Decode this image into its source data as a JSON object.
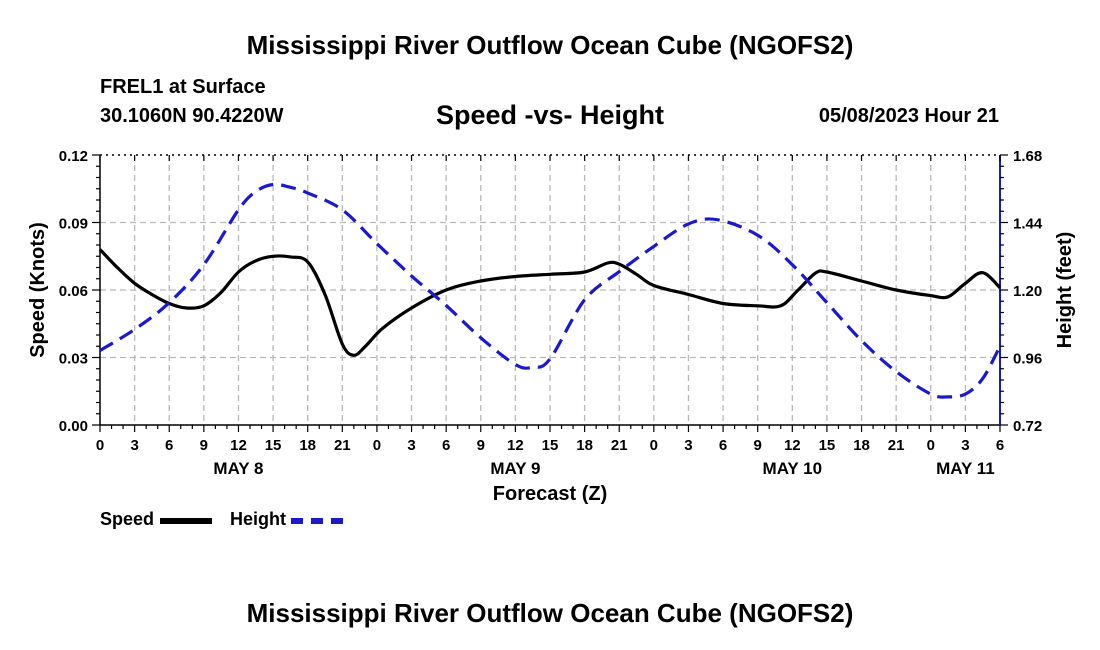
{
  "header": {
    "title": "Mississippi River Outflow Ocean Cube (NGOFS2)",
    "station": "FREL1 at Surface",
    "coords": "30.1060N  90.4220W",
    "subtitle": "Speed -vs- Height",
    "datetime": "05/08/2023 Hour 21"
  },
  "footer": {
    "title": "Mississippi River Outflow Ocean Cube (NGOFS2)"
  },
  "legend": {
    "speed_label": "Speed",
    "height_label": "Height",
    "speed_color": "#000000",
    "height_color": "#1a1acc"
  },
  "chart_data": {
    "type": "line",
    "title": "Speed -vs- Height",
    "xlabel": "Forecast (Z)",
    "ylabel": "Speed (Knots)",
    "y2label": "Height (feet)",
    "xlim": [
      0,
      78
    ],
    "ylim": [
      0,
      0.12
    ],
    "y2lim": [
      0.72,
      1.68
    ],
    "x_ticks": [
      0,
      3,
      6,
      9,
      12,
      15,
      18,
      21,
      24,
      27,
      30,
      33,
      36,
      39,
      42,
      45,
      48,
      51,
      54,
      57,
      60,
      63,
      66,
      69,
      72,
      75,
      78
    ],
    "x_tick_labels": [
      "0",
      "3",
      "6",
      "9",
      "12",
      "15",
      "18",
      "21",
      "0",
      "3",
      "6",
      "9",
      "12",
      "15",
      "18",
      "21",
      "0",
      "3",
      "6",
      "9",
      "12",
      "15",
      "18",
      "21",
      "0",
      "3",
      "6"
    ],
    "day_labels": [
      {
        "x": 12,
        "label": "MAY 8"
      },
      {
        "x": 36,
        "label": "MAY 9"
      },
      {
        "x": 60,
        "label": "MAY 10"
      },
      {
        "x": 75,
        "label": "MAY 11"
      }
    ],
    "y_ticks": [
      0,
      0.03,
      0.06,
      0.09,
      0.12
    ],
    "y_tick_labels": [
      "0.00",
      "0.03",
      "0.06",
      "0.09",
      "0.12"
    ],
    "y2_ticks": [
      0.72,
      0.96,
      1.2,
      1.44,
      1.68
    ],
    "y2_tick_labels": [
      "0.72",
      "0.96",
      "1.20",
      "1.44",
      "1.68"
    ],
    "grid": true,
    "series": [
      {
        "name": "Speed",
        "axis": "left",
        "color": "#000000",
        "dash": false,
        "x": [
          0,
          1.5,
          3,
          4.5,
          6,
          7.5,
          9,
          10.5,
          12,
          13.5,
          15,
          16.5,
          18,
          19.5,
          21,
          22,
          23,
          24.5,
          27,
          30,
          33,
          36,
          39,
          42,
          44,
          45,
          46.5,
          48,
          51,
          54,
          57,
          59,
          60.5,
          62,
          63,
          66,
          69,
          72,
          73.5,
          75,
          76.5,
          78
        ],
        "values": [
          0.078,
          0.07,
          0.063,
          0.058,
          0.054,
          0.052,
          0.053,
          0.059,
          0.068,
          0.073,
          0.075,
          0.0747,
          0.0725,
          0.058,
          0.036,
          0.031,
          0.035,
          0.043,
          0.052,
          0.06,
          0.064,
          0.066,
          0.067,
          0.068,
          0.072,
          0.0715,
          0.067,
          0.062,
          0.058,
          0.054,
          0.053,
          0.053,
          0.06,
          0.0675,
          0.068,
          0.064,
          0.06,
          0.0575,
          0.057,
          0.063,
          0.0677,
          0.061
        ]
      },
      {
        "name": "Height",
        "axis": "right",
        "color": "#1a1acc",
        "dash": true,
        "x": [
          0,
          3,
          6,
          9,
          12,
          13.5,
          15,
          16.5,
          18,
          21,
          24,
          27,
          30,
          33,
          36,
          37.5,
          39,
          42,
          45,
          48,
          51,
          53.5,
          57,
          60,
          63,
          66,
          69,
          72,
          73.5,
          75,
          76.5,
          78
        ],
        "values": [
          0.985,
          1.06,
          1.155,
          1.29,
          1.485,
          1.55,
          1.575,
          1.565,
          1.545,
          1.485,
          1.365,
          1.25,
          1.145,
          1.03,
          0.935,
          0.925,
          0.955,
          1.165,
          1.265,
          1.355,
          1.435,
          1.45,
          1.395,
          1.29,
          1.155,
          1.02,
          0.91,
          0.83,
          0.82,
          0.83,
          0.885,
          1.0
        ]
      }
    ]
  }
}
